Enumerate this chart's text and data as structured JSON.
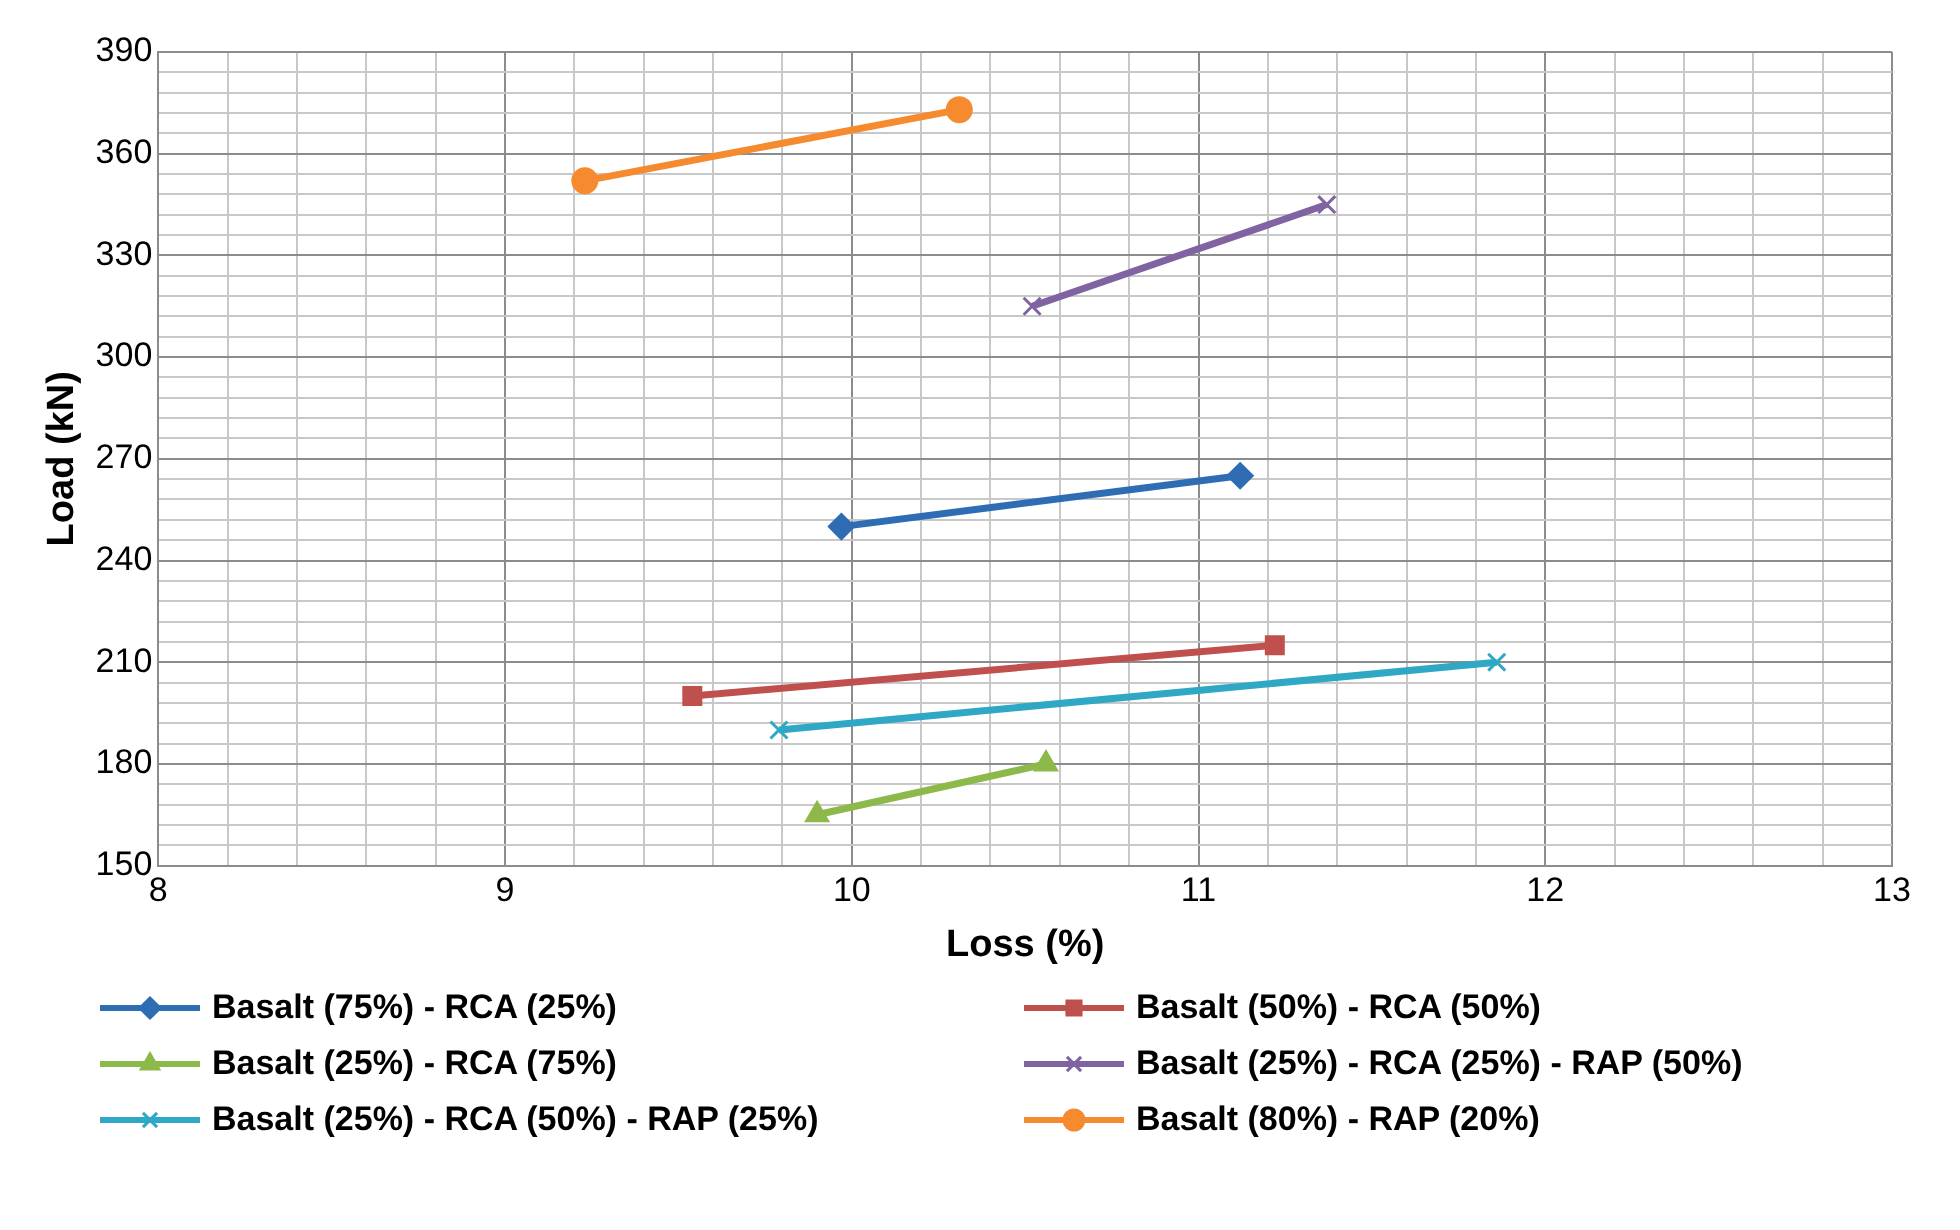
{
  "chart_data": {
    "type": "line",
    "xlabel": "Loss (%)",
    "ylabel": "Load (kN)",
    "xlim": [
      8,
      13
    ],
    "ylim": [
      150,
      390
    ],
    "xticks": [
      8,
      {
        "value": 8.2,
        "label": null
      },
      {
        "value": 8.4,
        "label": null
      },
      {
        "value": 8.6,
        "label": null
      },
      {
        "value": 8.8,
        "label": null
      },
      9,
      {
        "value": 9.2,
        "label": null
      },
      {
        "value": 9.4,
        "label": null
      },
      {
        "value": 9.6,
        "label": null
      },
      {
        "value": 9.8,
        "label": null
      },
      10,
      {
        "value": 10.2,
        "label": null
      },
      {
        "value": 10.4,
        "label": null
      },
      {
        "value": 10.6,
        "label": null
      },
      {
        "value": 10.8,
        "label": null
      },
      11,
      {
        "value": 11.2,
        "label": null
      },
      {
        "value": 11.4,
        "label": null
      },
      {
        "value": 11.6,
        "label": null
      },
      {
        "value": 11.8,
        "label": null
      },
      12,
      {
        "value": 12.2,
        "label": null
      },
      {
        "value": 12.4,
        "label": null
      },
      {
        "value": 12.6,
        "label": null
      },
      {
        "value": 12.8,
        "label": null
      },
      13
    ],
    "yticks": [
      150,
      {
        "value": 156,
        "label": null
      },
      {
        "value": 162,
        "label": null
      },
      {
        "value": 168,
        "label": null
      },
      {
        "value": 174,
        "label": null
      },
      180,
      {
        "value": 186,
        "label": null
      },
      {
        "value": 192,
        "label": null
      },
      {
        "value": 198,
        "label": null
      },
      {
        "value": 204,
        "label": null
      },
      210,
      {
        "value": 216,
        "label": null
      },
      {
        "value": 222,
        "label": null
      },
      {
        "value": 228,
        "label": null
      },
      {
        "value": 234,
        "label": null
      },
      240,
      {
        "value": 246,
        "label": null
      },
      {
        "value": 252,
        "label": null
      },
      {
        "value": 258,
        "label": null
      },
      {
        "value": 264,
        "label": null
      },
      270,
      {
        "value": 276,
        "label": null
      },
      {
        "value": 282,
        "label": null
      },
      {
        "value": 288,
        "label": null
      },
      {
        "value": 294,
        "label": null
      },
      300,
      {
        "value": 306,
        "label": null
      },
      {
        "value": 312,
        "label": null
      },
      {
        "value": 318,
        "label": null
      },
      {
        "value": 324,
        "label": null
      },
      330,
      {
        "value": 336,
        "label": null
      },
      {
        "value": 342,
        "label": null
      },
      {
        "value": 348,
        "label": null
      },
      {
        "value": 354,
        "label": null
      },
      360,
      {
        "value": 366,
        "label": null
      },
      {
        "value": 372,
        "label": null
      },
      {
        "value": 378,
        "label": null
      },
      {
        "value": 384,
        "label": null
      },
      390
    ],
    "grid": true,
    "legend": "bottom",
    "line_style": "solid",
    "series": [
      {
        "name": "Basalt (75%) - RCA (25%)",
        "color": "#2e6db4",
        "marker": "diamond",
        "x": [
          9.97,
          11.12
        ],
        "values": [
          250,
          265
        ]
      },
      {
        "name": "Basalt (50%) - RCA (50%)",
        "color": "#c0504d",
        "marker": "square",
        "x": [
          9.54,
          11.22
        ],
        "values": [
          200,
          215
        ]
      },
      {
        "name": "Basalt (25%) - RCA (75%)",
        "color": "#8db84a",
        "marker": "triangle",
        "x": [
          9.9,
          10.56
        ],
        "values": [
          165,
          180
        ]
      },
      {
        "name": "Basalt (25%) - RCA (25%) - RAP (50%)",
        "color": "#8064a2",
        "marker": "cross",
        "x": [
          10.52,
          11.37
        ],
        "values": [
          315,
          345
        ]
      },
      {
        "name": "Basalt (25%) - RCA (50%) - RAP (25%)",
        "color": "#2ea8c4",
        "marker": "cross",
        "x": [
          9.79,
          11.86
        ],
        "values": [
          190,
          210
        ]
      },
      {
        "name": "Basalt (80%) - RAP (20%)",
        "color": "#f58a2f",
        "marker": "circle",
        "x": [
          9.23,
          10.31
        ],
        "values": [
          352,
          373
        ]
      }
    ]
  }
}
